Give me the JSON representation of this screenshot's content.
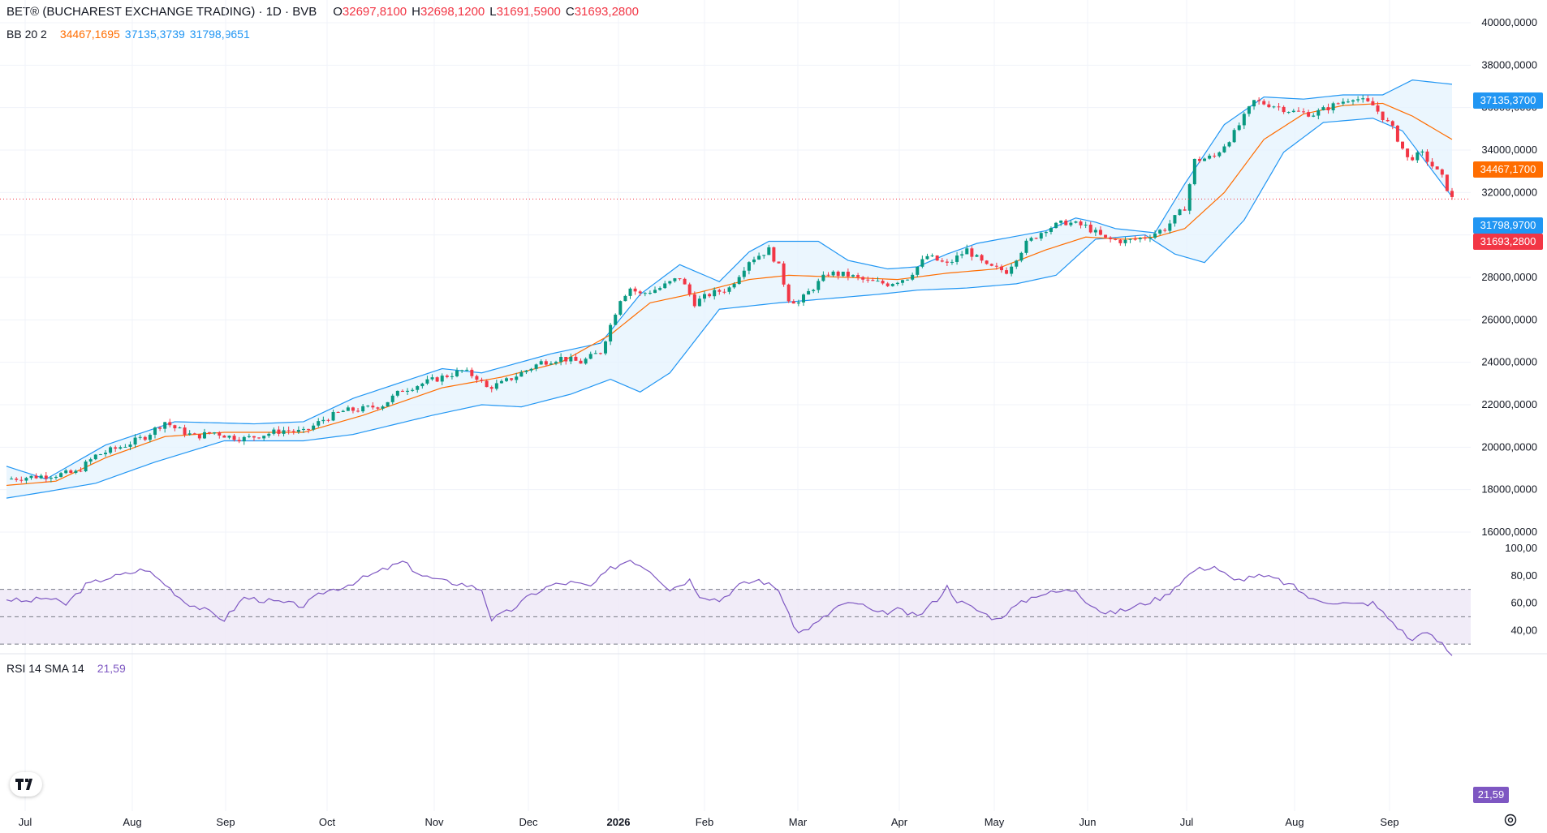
{
  "header": {
    "symbol": "BET® (BUCHAREST EXCHANGE TRADING) · 1D · BVB",
    "o_label": "O",
    "o_value": "32697,8100",
    "h_label": "H",
    "h_value": "32698,1200",
    "l_label": "L",
    "l_value": "31691,5900",
    "c_label": "C",
    "c_value": "31693,2800"
  },
  "bb_legend": {
    "name": "BB 20 2",
    "basis": "34467,1695",
    "upper": "37135,3739",
    "lower": "31798,9651"
  },
  "rsi_legend": {
    "name": "RSI 14 SMA 14",
    "value": "21,59"
  },
  "price_tags": {
    "upper": "37135,3700",
    "basis": "34467,1700",
    "lower": "31798,9700",
    "last": "31693,2800",
    "rsi": "21,59"
  },
  "colors": {
    "up": "#089981",
    "down": "#f23645",
    "bb_band": "#2196f3",
    "bb_basis": "#ff6d00",
    "bb_fill": "#e3f2fd",
    "rsi": "#7e57c2",
    "rsi_fill": "#ede7f6"
  },
  "icons": {
    "logo": "tradingview-logo-icon",
    "settings": "gear-icon"
  },
  "chart_data": [
    {
      "type": "candlestick",
      "title": "BET® (BUCHAREST EXCHANGE TRADING) · 1D · BVB",
      "y_ticks": [
        "40000,0000",
        "38000,0000",
        "36000,0000",
        "34000,0000",
        "32000,0000",
        "30000,0000",
        "28000,0000",
        "26000,0000",
        "24000,0000",
        "22000,0000",
        "20000,0000",
        "18000,0000",
        "16000,0000"
      ],
      "ylim": [
        16000,
        40000
      ],
      "x_ticks": [
        "Jul",
        "Aug",
        "Sep",
        "Oct",
        "Nov",
        "Dec",
        "2026",
        "Feb",
        "Mar",
        "Apr",
        "May",
        "Jun",
        "Jul",
        "Aug",
        "Sep"
      ],
      "close_path": [
        [
          0,
          18500
        ],
        [
          5,
          18600
        ],
        [
          10,
          18700
        ],
        [
          14,
          18800
        ],
        [
          18,
          19600
        ],
        [
          24,
          20100
        ],
        [
          28,
          20500
        ],
        [
          32,
          21200
        ],
        [
          34,
          20900
        ],
        [
          38,
          20500
        ],
        [
          42,
          20700
        ],
        [
          45,
          20500
        ],
        [
          48,
          20400
        ],
        [
          52,
          20600
        ],
        [
          56,
          20800
        ],
        [
          60,
          20700
        ],
        [
          64,
          21300
        ],
        [
          68,
          21700
        ],
        [
          72,
          21800
        ],
        [
          76,
          22000
        ],
        [
          80,
          22700
        ],
        [
          84,
          23000
        ],
        [
          88,
          23300
        ],
        [
          92,
          23600
        ],
        [
          95,
          23300
        ],
        [
          97,
          22800
        ],
        [
          100,
          23000
        ],
        [
          104,
          23500
        ],
        [
          108,
          24000
        ],
        [
          112,
          24200
        ],
        [
          116,
          24000
        ],
        [
          120,
          24500
        ],
        [
          124,
          27000
        ],
        [
          126,
          27500
        ],
        [
          128,
          27200
        ],
        [
          132,
          27500
        ],
        [
          136,
          28000
        ],
        [
          139,
          26800
        ],
        [
          142,
          27200
        ],
        [
          146,
          27500
        ],
        [
          150,
          28800
        ],
        [
          154,
          29300
        ],
        [
          156,
          28500
        ],
        [
          158,
          27000
        ],
        [
          160,
          26800
        ],
        [
          162,
          27300
        ],
        [
          166,
          28200
        ],
        [
          170,
          28100
        ],
        [
          174,
          27800
        ],
        [
          178,
          27700
        ],
        [
          182,
          28000
        ],
        [
          186,
          29000
        ],
        [
          190,
          28600
        ],
        [
          194,
          29300
        ],
        [
          198,
          28500
        ],
        [
          202,
          28300
        ],
        [
          206,
          29600
        ],
        [
          210,
          30300
        ],
        [
          214,
          30600
        ],
        [
          218,
          30400
        ],
        [
          222,
          29800
        ],
        [
          226,
          29700
        ],
        [
          230,
          29900
        ],
        [
          234,
          30300
        ],
        [
          238,
          31300
        ],
        [
          240,
          33500
        ],
        [
          244,
          33700
        ],
        [
          248,
          34800
        ],
        [
          252,
          36300
        ],
        [
          256,
          36100
        ],
        [
          260,
          35800
        ],
        [
          264,
          35700
        ],
        [
          268,
          36100
        ],
        [
          272,
          36500
        ],
        [
          276,
          36100
        ],
        [
          280,
          35000
        ],
        [
          283,
          33600
        ],
        [
          286,
          33800
        ],
        [
          290,
          32700
        ],
        [
          292,
          31700
        ]
      ],
      "bb_upper_path": [
        [
          0,
          19100
        ],
        [
          8,
          18500
        ],
        [
          20,
          20100
        ],
        [
          34,
          21200
        ],
        [
          50,
          21100
        ],
        [
          60,
          21200
        ],
        [
          70,
          22300
        ],
        [
          88,
          23700
        ],
        [
          96,
          23500
        ],
        [
          110,
          24400
        ],
        [
          120,
          24900
        ],
        [
          128,
          27200
        ],
        [
          136,
          28600
        ],
        [
          144,
          27800
        ],
        [
          150,
          29200
        ],
        [
          154,
          29700
        ],
        [
          164,
          29700
        ],
        [
          170,
          28800
        ],
        [
          178,
          28400
        ],
        [
          184,
          28500
        ],
        [
          190,
          29100
        ],
        [
          196,
          29600
        ],
        [
          210,
          30200
        ],
        [
          216,
          30800
        ],
        [
          220,
          30600
        ],
        [
          224,
          30300
        ],
        [
          232,
          30100
        ],
        [
          238,
          32400
        ],
        [
          246,
          35200
        ],
        [
          254,
          36500
        ],
        [
          262,
          36400
        ],
        [
          270,
          36600
        ],
        [
          278,
          36600
        ],
        [
          284,
          37300
        ],
        [
          292,
          37100
        ]
      ],
      "bb_basis_path": [
        [
          0,
          18200
        ],
        [
          10,
          18400
        ],
        [
          20,
          19500
        ],
        [
          32,
          20500
        ],
        [
          44,
          20700
        ],
        [
          60,
          20700
        ],
        [
          72,
          21500
        ],
        [
          88,
          22800
        ],
        [
          100,
          23300
        ],
        [
          112,
          24000
        ],
        [
          122,
          25300
        ],
        [
          130,
          26800
        ],
        [
          140,
          27300
        ],
        [
          150,
          27900
        ],
        [
          158,
          28100
        ],
        [
          170,
          28000
        ],
        [
          180,
          27900
        ],
        [
          190,
          28200
        ],
        [
          200,
          28400
        ],
        [
          210,
          29300
        ],
        [
          218,
          29900
        ],
        [
          226,
          29800
        ],
        [
          232,
          29900
        ],
        [
          238,
          30300
        ],
        [
          246,
          32000
        ],
        [
          254,
          34500
        ],
        [
          262,
          35700
        ],
        [
          270,
          36100
        ],
        [
          278,
          36200
        ],
        [
          284,
          35600
        ],
        [
          292,
          34500
        ]
      ],
      "bb_lower_path": [
        [
          0,
          17600
        ],
        [
          8,
          17900
        ],
        [
          18,
          18300
        ],
        [
          30,
          19300
        ],
        [
          44,
          20300
        ],
        [
          60,
          20300
        ],
        [
          70,
          20600
        ],
        [
          86,
          21500
        ],
        [
          96,
          22000
        ],
        [
          104,
          21900
        ],
        [
          114,
          22500
        ],
        [
          122,
          23200
        ],
        [
          128,
          22600
        ],
        [
          134,
          23500
        ],
        [
          144,
          26500
        ],
        [
          156,
          26800
        ],
        [
          166,
          27000
        ],
        [
          176,
          27200
        ],
        [
          184,
          27400
        ],
        [
          194,
          27500
        ],
        [
          204,
          27700
        ],
        [
          212,
          28100
        ],
        [
          220,
          29800
        ],
        [
          230,
          30000
        ],
        [
          236,
          29100
        ],
        [
          242,
          28700
        ],
        [
          250,
          30700
        ],
        [
          258,
          33900
        ],
        [
          266,
          35300
        ],
        [
          276,
          35500
        ],
        [
          282,
          34900
        ],
        [
          292,
          31800
        ]
      ]
    },
    {
      "type": "line",
      "title": "RSI 14 SMA 14",
      "y_ticks": [
        "100,00",
        "80,00",
        "60,00",
        "40,00"
      ],
      "ylim": [
        20,
        100
      ],
      "bands": [
        30,
        50,
        70
      ],
      "rsi_path": [
        [
          0,
          63
        ],
        [
          4,
          61
        ],
        [
          8,
          64
        ],
        [
          12,
          59
        ],
        [
          16,
          73
        ],
        [
          20,
          78
        ],
        [
          24,
          81
        ],
        [
          28,
          85
        ],
        [
          32,
          74
        ],
        [
          36,
          61
        ],
        [
          40,
          55
        ],
        [
          44,
          48
        ],
        [
          48,
          64
        ],
        [
          52,
          62
        ],
        [
          56,
          60
        ],
        [
          60,
          58
        ],
        [
          64,
          68
        ],
        [
          68,
          72
        ],
        [
          72,
          78
        ],
        [
          76,
          84
        ],
        [
          80,
          90
        ],
        [
          84,
          80
        ],
        [
          88,
          76
        ],
        [
          92,
          74
        ],
        [
          96,
          70
        ],
        [
          98,
          48
        ],
        [
          102,
          55
        ],
        [
          106,
          66
        ],
        [
          110,
          73
        ],
        [
          114,
          75
        ],
        [
          118,
          72
        ],
        [
          122,
          85
        ],
        [
          126,
          92
        ],
        [
          130,
          84
        ],
        [
          134,
          70
        ],
        [
          138,
          77
        ],
        [
          140,
          66
        ],
        [
          144,
          62
        ],
        [
          148,
          73
        ],
        [
          152,
          77
        ],
        [
          156,
          70
        ],
        [
          158,
          51
        ],
        [
          160,
          38
        ],
        [
          164,
          46
        ],
        [
          168,
          58
        ],
        [
          172,
          60
        ],
        [
          176,
          52
        ],
        [
          180,
          55
        ],
        [
          184,
          50
        ],
        [
          188,
          63
        ],
        [
          190,
          72
        ],
        [
          192,
          62
        ],
        [
          196,
          55
        ],
        [
          200,
          48
        ],
        [
          204,
          58
        ],
        [
          208,
          66
        ],
        [
          212,
          68
        ],
        [
          216,
          70
        ],
        [
          218,
          62
        ],
        [
          222,
          52
        ],
        [
          226,
          55
        ],
        [
          230,
          60
        ],
        [
          234,
          65
        ],
        [
          236,
          72
        ],
        [
          240,
          84
        ],
        [
          244,
          87
        ],
        [
          248,
          76
        ],
        [
          252,
          80
        ],
        [
          256,
          78
        ],
        [
          260,
          72
        ],
        [
          264,
          62
        ],
        [
          268,
          61
        ],
        [
          272,
          59
        ],
        [
          276,
          60
        ],
        [
          280,
          46
        ],
        [
          284,
          32
        ],
        [
          286,
          40
        ],
        [
          290,
          30
        ],
        [
          292,
          21.59
        ]
      ]
    }
  ]
}
